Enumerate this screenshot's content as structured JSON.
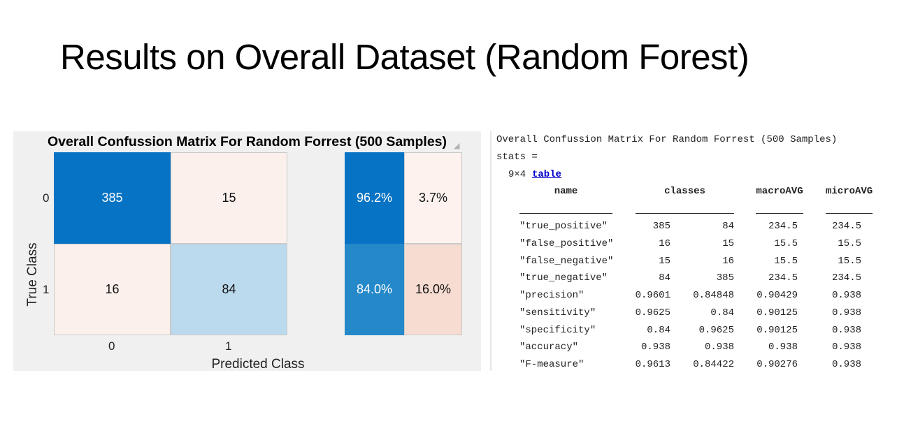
{
  "slide": {
    "title": "Results on Overall Dataset (Random Forest)"
  },
  "confusion_matrix": {
    "title": "Overall Confussion Matrix For Random Forrest (500 Samples)",
    "xlabel": "Predicted Class",
    "ylabel": "True Class",
    "row_labels": [
      "0",
      "1"
    ],
    "col_labels": [
      "0",
      "1"
    ],
    "cells": [
      [
        "385",
        "15"
      ],
      [
        "16",
        "84"
      ]
    ],
    "row_summary": [
      [
        "96.2%",
        "3.7%"
      ],
      [
        "84.0%",
        "16.0%"
      ]
    ],
    "colors": {
      "strong": "#0773c4",
      "light_blue": "#bcdaee",
      "pale": "#fcf0ec",
      "summary_dark_1": "#0773c4",
      "summary_dark_2": "#2588c9",
      "summary_light_1": "#fdf2ee",
      "summary_light_2": "#f7dcd1"
    }
  },
  "stats": {
    "heading": "Overall Confussion Matrix For Random Forrest (500 Samples)",
    "assign": "stats =",
    "size": "9×4",
    "type_link": "table",
    "columns": [
      "name",
      "classes",
      "macroAVG",
      "microAVG"
    ],
    "rows": [
      {
        "name": "\"true_positive\"",
        "c1": "385",
        "c2": "84",
        "macro": "234.5",
        "micro": "234.5"
      },
      {
        "name": "\"false_positive\"",
        "c1": "16",
        "c2": "15",
        "macro": "15.5",
        "micro": "15.5"
      },
      {
        "name": "\"false_negative\"",
        "c1": "15",
        "c2": "16",
        "macro": "15.5",
        "micro": "15.5"
      },
      {
        "name": "\"true_negative\"",
        "c1": "84",
        "c2": "385",
        "macro": "234.5",
        "micro": "234.5"
      },
      {
        "name": "\"precision\"",
        "c1": "0.9601",
        "c2": "0.84848",
        "macro": "0.90429",
        "micro": "0.938"
      },
      {
        "name": "\"sensitivity\"",
        "c1": "0.9625",
        "c2": "0.84",
        "macro": "0.90125",
        "micro": "0.938"
      },
      {
        "name": "\"specificity\"",
        "c1": "0.84",
        "c2": "0.9625",
        "macro": "0.90125",
        "micro": "0.938"
      },
      {
        "name": "\"accuracy\"",
        "c1": "0.938",
        "c2": "0.938",
        "macro": "0.938",
        "micro": "0.938"
      },
      {
        "name": "\"F-measure\"",
        "c1": "0.9613",
        "c2": "0.84422",
        "macro": "0.90276",
        "micro": "0.938"
      }
    ]
  }
}
